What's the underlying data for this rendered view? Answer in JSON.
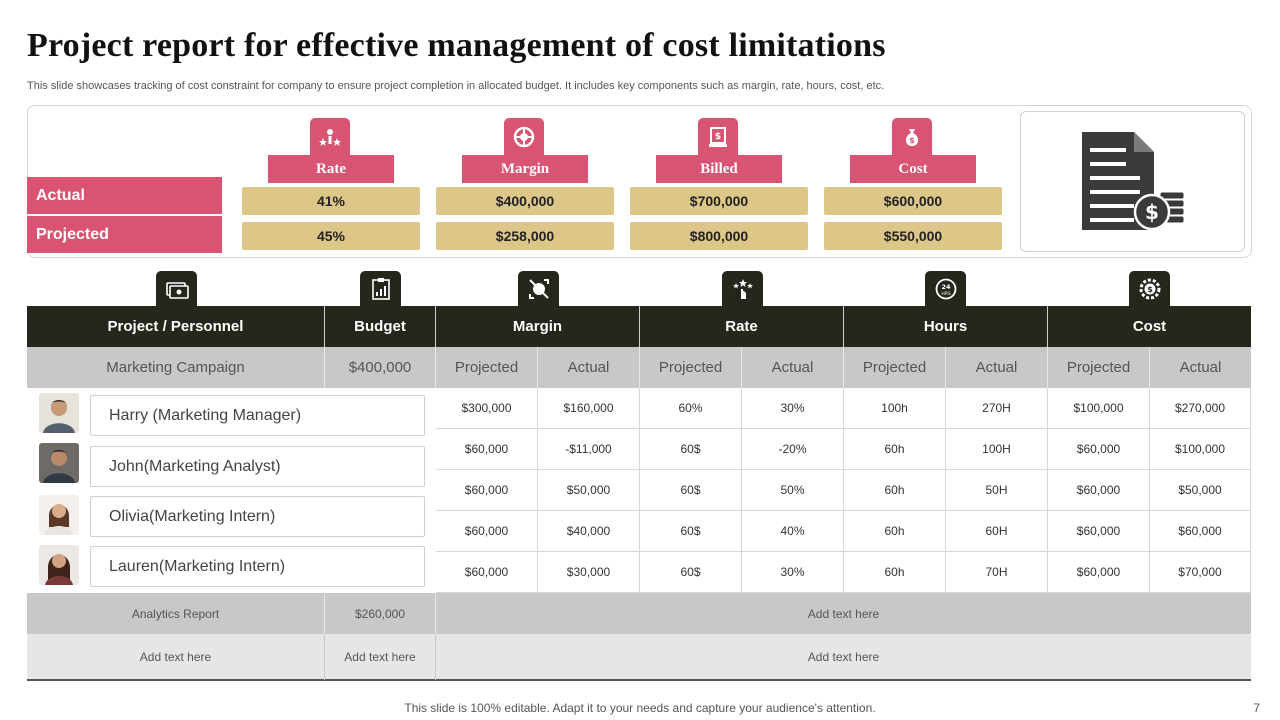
{
  "title": "Project report for effective management of cost limitations",
  "subtitle": "This slide showcases tracking of cost constraint for company to  ensure project completion in allocated budget. It includes key components such as margin, rate, hours, cost, etc.",
  "summary": {
    "row_labels": {
      "actual": "Actual",
      "projected": "Projected"
    },
    "metrics": [
      {
        "label": "Rate",
        "icon": "rate-icon",
        "actual": "41%",
        "projected": "45%"
      },
      {
        "label": "Margin",
        "icon": "margin-icon",
        "actual": "$400,000",
        "projected": "$258,000"
      },
      {
        "label": "Billed",
        "icon": "billed-icon",
        "actual": "$700,000",
        "projected": "$800,000"
      },
      {
        "label": "Cost",
        "icon": "cost-icon",
        "actual": "$600,000",
        "projected": "$550,000"
      }
    ],
    "illustration_icon": "document-dollar-icon"
  },
  "table": {
    "headers": [
      "Project / Personnel",
      "Budget",
      "Margin",
      "Rate",
      "Hours",
      "Cost"
    ],
    "header_icons": [
      "project-icon",
      "budget-icon",
      "margin-icon",
      "rate-icon",
      "hours-icon",
      "cost-icon"
    ],
    "campaign": {
      "name": "Marketing Campaign",
      "budget": "$400,000",
      "subheaders": [
        "Projected",
        "Actual",
        "Projected",
        "Actual",
        "Projected",
        "Actual",
        "Projected",
        "Actual"
      ]
    },
    "personnel": [
      {
        "name": "Harry (Marketing Manager)",
        "values": [
          "$300,000",
          "$160,000",
          "60%",
          "30%",
          "100h",
          "270H",
          "$100,000",
          "$270,000"
        ]
      },
      {
        "name": "John(Marketing Analyst)",
        "values": [
          "$60,000",
          "-$11,000",
          "60$",
          "-20%",
          "60h",
          "100H",
          "$60,000",
          "$100,000"
        ]
      },
      {
        "name": "Olivia(Marketing Intern)",
        "values": [
          "$60,000",
          "$50,000",
          "60$",
          "50%",
          "60h",
          "50H",
          "$60,000",
          "$50,000"
        ]
      },
      {
        "name": "Lauren(Marketing Intern)",
        "values": [
          "$60,000",
          "$40,000",
          "60$",
          "40%",
          "60h",
          "60H",
          "$60,000",
          "$60,000"
        ]
      }
    ],
    "extra_row": [
      "$60,000",
      "$30,000",
      "60$",
      "30%",
      "60h",
      "70H",
      "$60,000",
      "$70,000"
    ],
    "analytics": {
      "name": "Analytics Report",
      "budget": "$260,000",
      "placeholder": "Add text here"
    },
    "last_row": {
      "col1": "Add text here",
      "col2": "Add text here",
      "col3": "Add text here"
    }
  },
  "footer": "This slide is 100% editable. Adapt it to your needs and capture your audience's attention.",
  "page_number": "7",
  "colors": {
    "accent_pink": "#d85472",
    "gold": "#dcc688",
    "dark": "#27261c",
    "grey": "#c8c8c8"
  }
}
